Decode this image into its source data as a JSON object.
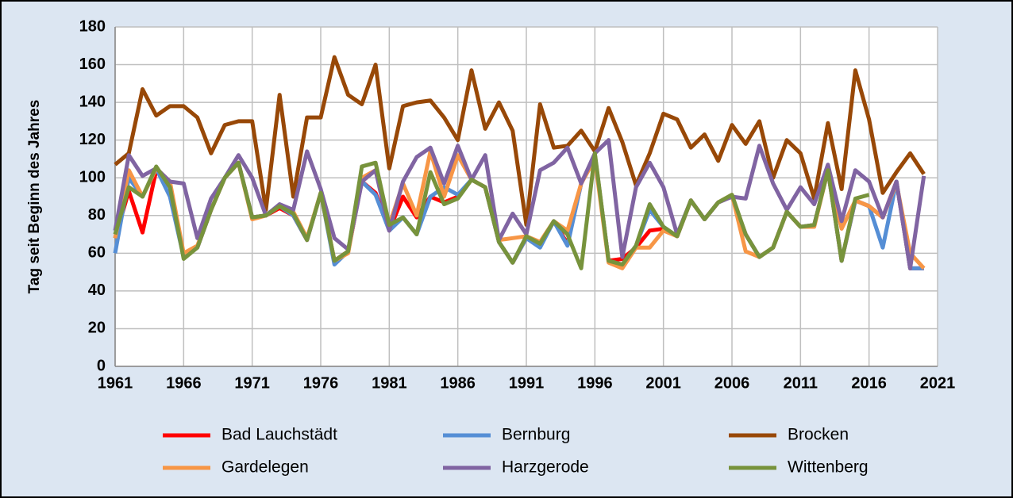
{
  "chart_data": {
    "type": "line",
    "ylabel": "Tag seit Beginn des Jahres",
    "x": [
      1961,
      1962,
      1963,
      1964,
      1965,
      1966,
      1967,
      1968,
      1969,
      1970,
      1971,
      1972,
      1973,
      1974,
      1975,
      1976,
      1977,
      1978,
      1979,
      1980,
      1981,
      1982,
      1983,
      1984,
      1985,
      1986,
      1987,
      1988,
      1989,
      1990,
      1991,
      1992,
      1993,
      1994,
      1995,
      1996,
      1997,
      1998,
      1999,
      2000,
      2001,
      2002,
      2003,
      2004,
      2005,
      2006,
      2007,
      2008,
      2009,
      2010,
      2011,
      2012,
      2013,
      2014,
      2015,
      2016,
      2017,
      2018,
      2019,
      2020
    ],
    "series": [
      {
        "name": "Bad Lauchstädt",
        "color": "#ff0000",
        "values": [
          68,
          93,
          71,
          104,
          96,
          58,
          63,
          83,
          100,
          108,
          79,
          80,
          84,
          80,
          67,
          92,
          56,
          61,
          98,
          92,
          72,
          90,
          79,
          90,
          87,
          90,
          99,
          95,
          66,
          55,
          68,
          64,
          77,
          65,
          97,
          112,
          56,
          57,
          63,
          72,
          73,
          69,
          88,
          78,
          87,
          90,
          70,
          58,
          63,
          82,
          74,
          75,
          104,
          56,
          88,
          85,
          79,
          98,
          52,
          52
        ]
      },
      {
        "name": "Bernburg",
        "color": "#558ed5",
        "values": [
          60,
          100,
          90,
          105,
          90,
          58,
          63,
          83,
          100,
          108,
          79,
          80,
          85,
          80,
          67,
          92,
          54,
          61,
          98,
          91,
          72,
          79,
          70,
          90,
          95,
          91,
          99,
          95,
          66,
          55,
          68,
          63,
          77,
          64,
          97,
          112,
          56,
          54,
          64,
          83,
          74,
          69,
          88,
          78,
          87,
          90,
          70,
          58,
          63,
          82,
          74,
          75,
          104,
          56,
          88,
          85,
          63,
          98,
          52,
          52
        ]
      },
      {
        "name": "Brocken",
        "color": "#984807",
        "values": [
          107,
          113,
          147,
          133,
          138,
          138,
          132,
          113,
          128,
          130,
          130,
          83,
          144,
          90,
          132,
          132,
          164,
          144,
          139,
          160,
          105,
          138,
          140,
          141,
          132,
          120,
          157,
          126,
          140,
          125,
          75,
          139,
          116,
          117,
          125,
          114,
          137,
          119,
          96,
          113,
          134,
          131,
          116,
          123,
          109,
          128,
          118,
          130,
          100,
          120,
          113,
          89,
          129,
          94,
          157,
          131,
          92,
          103,
          113,
          102
        ]
      },
      {
        "name": "Gardelegen",
        "color": "#f79646",
        "values": [
          68,
          104,
          90,
          105,
          98,
          60,
          64,
          83,
          100,
          108,
          78,
          80,
          85,
          82,
          68,
          92,
          56,
          60,
          100,
          104,
          75,
          97,
          80,
          114,
          90,
          112,
          99,
          95,
          67,
          68,
          69,
          66,
          77,
          72,
          97,
          110,
          55,
          52,
          63,
          63,
          72,
          69,
          88,
          78,
          87,
          91,
          61,
          58,
          63,
          82,
          74,
          74,
          104,
          73,
          88,
          85,
          79,
          97,
          60,
          52
        ]
      },
      {
        "name": "Harzgerode",
        "color": "#8064a2",
        "values": [
          72,
          112,
          101,
          105,
          98,
          97,
          68,
          89,
          100,
          112,
          100,
          80,
          86,
          83,
          114,
          94,
          68,
          62,
          98,
          104,
          72,
          98,
          111,
          116,
          97,
          117,
          99,
          112,
          67,
          81,
          70,
          104,
          108,
          116,
          97,
          113,
          120,
          58,
          95,
          108,
          95,
          70,
          88,
          78,
          87,
          90,
          89,
          117,
          97,
          83,
          95,
          86,
          107,
          77,
          104,
          98,
          79,
          98,
          52,
          101
        ]
      },
      {
        "name": "Wittenberg",
        "color": "#77933c",
        "values": [
          70,
          95,
          90,
          106,
          95,
          57,
          63,
          83,
          100,
          108,
          79,
          80,
          85,
          81,
          67,
          92,
          56,
          61,
          106,
          108,
          75,
          79,
          70,
          103,
          86,
          89,
          99,
          95,
          66,
          55,
          69,
          65,
          77,
          70,
          52,
          113,
          56,
          54,
          64,
          86,
          74,
          69,
          88,
          78,
          87,
          91,
          70,
          58,
          63,
          82,
          74,
          75,
          104,
          56,
          89,
          91,
          null,
          null,
          null,
          null
        ]
      }
    ],
    "xlim": [
      1961,
      2021
    ],
    "xticks": [
      1961,
      1966,
      1971,
      1976,
      1981,
      1986,
      1991,
      1996,
      2001,
      2006,
      2011,
      2016,
      2021
    ],
    "ylim": [
      0,
      180
    ],
    "yticks": [
      0,
      20,
      40,
      60,
      80,
      100,
      120,
      140,
      160,
      180
    ],
    "grid": true,
    "legend": "bottom"
  }
}
